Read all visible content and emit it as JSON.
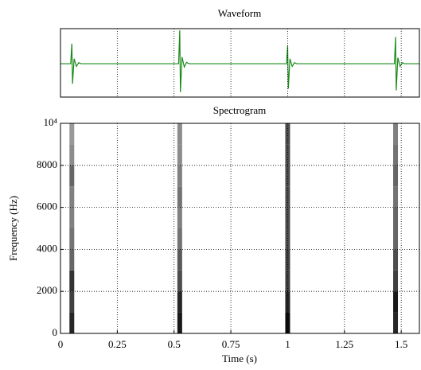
{
  "chart_data": [
    {
      "type": "line",
      "title": "Waveform",
      "x": [
        0,
        0.045,
        0.05,
        0.053,
        0.06,
        0.07,
        0.08,
        0.09,
        0.52,
        0.525,
        0.528,
        0.535,
        0.545,
        0.555,
        0.565,
        0.995,
        1.0,
        1.003,
        1.01,
        1.02,
        1.03,
        1.04,
        1.47,
        1.475,
        1.478,
        1.485,
        1.495,
        1.505,
        1.515,
        1.58
      ],
      "values": [
        0,
        0,
        0.6,
        -0.6,
        0.15,
        -0.08,
        0.03,
        0,
        0,
        1,
        -0.85,
        0.2,
        -0.1,
        0.04,
        0,
        0,
        0.55,
        -0.75,
        0.15,
        -0.08,
        0.03,
        0,
        0,
        0.8,
        -0.8,
        0.18,
        -0.08,
        0.03,
        0,
        0
      ],
      "color": "#1a8a1a",
      "xlim": [
        0,
        1.58
      ],
      "ylim": [
        -1,
        1.05
      ],
      "xticks": [
        0.25,
        0.5,
        0.75,
        1,
        1.25,
        1.5
      ],
      "grid": true
    },
    {
      "type": "heatmap",
      "title": "Spectrogram",
      "xlabel": "Time (s)",
      "ylabel": "Frequency (Hz)",
      "x": [
        0.05,
        0.525,
        1.0,
        1.475
      ],
      "y": [
        500,
        1500,
        2500,
        3500,
        4500,
        5500,
        6500,
        7500,
        8500,
        9500
      ],
      "z": [
        [
          0.85,
          0.75,
          0.8,
          0.6,
          0.55,
          0.5,
          0.5,
          0.6,
          0.45,
          0.4
        ],
        [
          0.9,
          0.85,
          0.7,
          0.65,
          0.55,
          0.5,
          0.55,
          0.5,
          0.45,
          0.45
        ],
        [
          0.95,
          0.85,
          0.75,
          0.75,
          0.7,
          0.7,
          0.7,
          0.7,
          0.7,
          0.7
        ],
        [
          0.85,
          0.9,
          0.75,
          0.7,
          0.6,
          0.6,
          0.55,
          0.6,
          0.55,
          0.5
        ]
      ],
      "xlim": [
        0,
        1.58
      ],
      "ylim": [
        0,
        10000
      ],
      "xticks": [
        0,
        0.25,
        0.5,
        0.75,
        1,
        1.25,
        1.5
      ],
      "yticks": [
        0,
        2000,
        4000,
        6000,
        8000,
        {
          "value": 10000,
          "label": "10⁴"
        }
      ],
      "grid": true
    }
  ]
}
